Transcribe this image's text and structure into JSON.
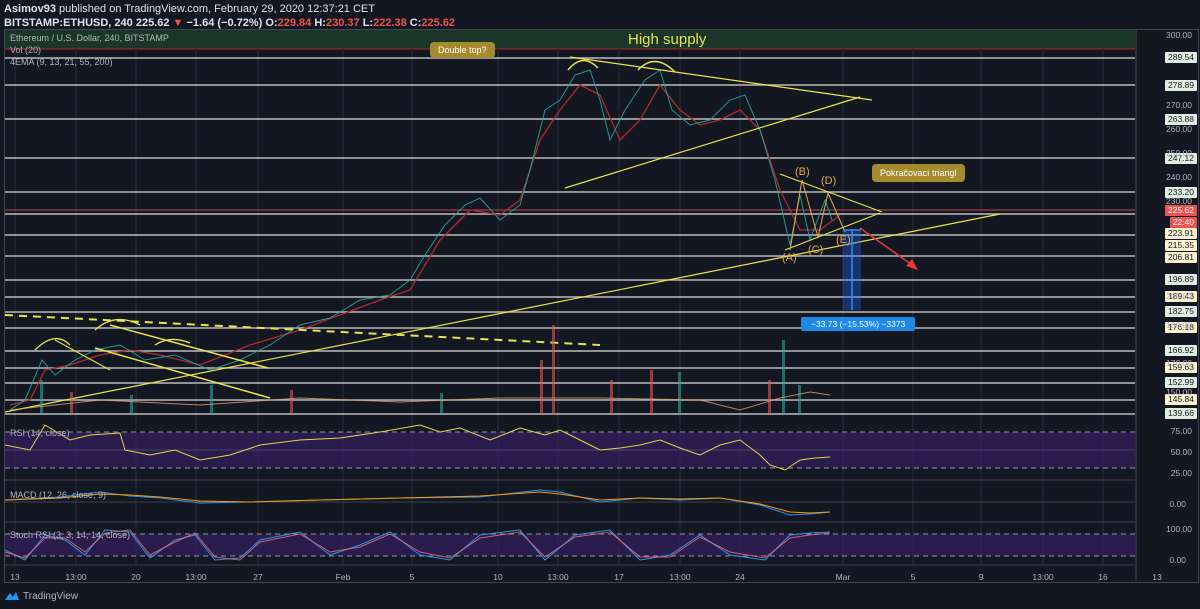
{
  "header": {
    "author": "Asimov93",
    "published_text": "published on TradingView.com, February 29, 2020 12:37:21 CET",
    "symbol": "BITSTAMP:ETHUSD, 240",
    "last": "225.62",
    "change": "−1.64 (−0.72%)",
    "open_label": "O:",
    "open": "229.84",
    "high_label": "H:",
    "high": "230.37",
    "low_label": "L:",
    "low": "222.38",
    "close_label": "C:",
    "close": "225.62"
  },
  "legends": {
    "main": "Ethereum / U.S. Dollar, 240, BITSTAMP",
    "vol": "Vol (20)",
    "ema": "4EMA (9, 13, 21, 55, 200)",
    "rsi": "RSI (14, close)",
    "macd": "MACD (12, 26, close, 9)",
    "stoch": "Stoch RSI (3, 3, 14, 14, close)"
  },
  "annotations": {
    "high_supply": "High supply",
    "double_top": "Double top?",
    "triangle": "Pokračovací triangl",
    "wave_a": "(A)",
    "wave_b": "(B)",
    "wave_c": "(C)",
    "wave_d": "(D)",
    "wave_e": "(E)",
    "measure": "−33.73 (−15.53%) −3373"
  },
  "price_axis": {
    "current_price": "225.62",
    "countdown": "22:40",
    "ticks": [
      "300.00",
      "270.00",
      "260.00",
      "250.00",
      "240.00",
      "230.00",
      "200.00",
      "180.00",
      "170.00",
      "150.00"
    ],
    "levels": [
      {
        "v": "289.54",
        "kind": "green"
      },
      {
        "v": "278.89",
        "kind": "green"
      },
      {
        "v": "263.88",
        "kind": "green"
      },
      {
        "v": "247.12",
        "kind": "green"
      },
      {
        "v": "233.20",
        "kind": "green"
      },
      {
        "v": "223.91",
        "kind": "cream"
      },
      {
        "v": "215.35",
        "kind": "cream"
      },
      {
        "v": "206.81",
        "kind": "cream"
      },
      {
        "v": "196.89",
        "kind": "green"
      },
      {
        "v": "189.43",
        "kind": "cream"
      },
      {
        "v": "182.75",
        "kind": "green"
      },
      {
        "v": "176.18",
        "kind": "cream"
      },
      {
        "v": "166.92",
        "kind": "green"
      },
      {
        "v": "159.63",
        "kind": "cream"
      },
      {
        "v": "152.99",
        "kind": "green"
      },
      {
        "v": "145.84",
        "kind": "cream"
      },
      {
        "v": "139.66",
        "kind": "green"
      }
    ],
    "rsi_ticks": [
      "75.00",
      "50.00",
      "25.00"
    ],
    "macd_ticks": [
      "0.00"
    ],
    "stoch_ticks": [
      "100.00",
      "0.00"
    ]
  },
  "time_axis": {
    "ticks": [
      "13",
      "13:00",
      "20",
      "13:00",
      "27",
      "Feb",
      "5",
      "10",
      "13:00",
      "17",
      "13:00",
      "24",
      "Mar",
      "5",
      "9",
      "13:00",
      "16",
      "13"
    ]
  },
  "footer": {
    "brand": "TradingView"
  },
  "chart_data": {
    "type": "candlestick",
    "title": "Ethereum / U.S. Dollar, 240, BITSTAMP",
    "symbol": "BITSTAMP:ETHUSD",
    "interval": "240",
    "x": [
      "Jan 13",
      "Jan 20",
      "Jan 27",
      "Feb 1",
      "Feb 5",
      "Feb 10",
      "Feb 13",
      "Feb 17",
      "Feb 20",
      "Feb 24",
      "Feb 27",
      "Feb 29"
    ],
    "approx_close": [
      142,
      168,
      165,
      182,
      190,
      222,
      272,
      258,
      275,
      265,
      215,
      225.62
    ],
    "ohlc_last": {
      "open": 229.84,
      "high": 230.37,
      "low": 222.38,
      "close": 225.62
    },
    "horizontal_levels": [
      289.54,
      278.89,
      263.88,
      247.12,
      233.2,
      223.91,
      215.35,
      206.81,
      196.89,
      189.43,
      182.75,
      176.18,
      166.92,
      159.63,
      152.99,
      145.84,
      139.66
    ],
    "ylim": [
      135,
      302
    ],
    "indicators": [
      "Vol (20)",
      "4EMA (9, 13, 21, 55, 200)",
      "RSI (14, close)",
      "MACD (12, 26, close, 9)",
      "Stoch RSI (3, 3, 14, 14, close)"
    ],
    "rsi_levels": [
      75,
      50,
      25
    ],
    "rsi_last_approx": 43,
    "stoch_levels": [
      100,
      0
    ],
    "annotations": [
      "High supply",
      "Double top?",
      "Pokračovací triangl",
      "(A)",
      "(B)",
      "(C)",
      "(D)",
      "(E)",
      "−33.73 (−15.53%) −3373"
    ],
    "grid": true
  }
}
